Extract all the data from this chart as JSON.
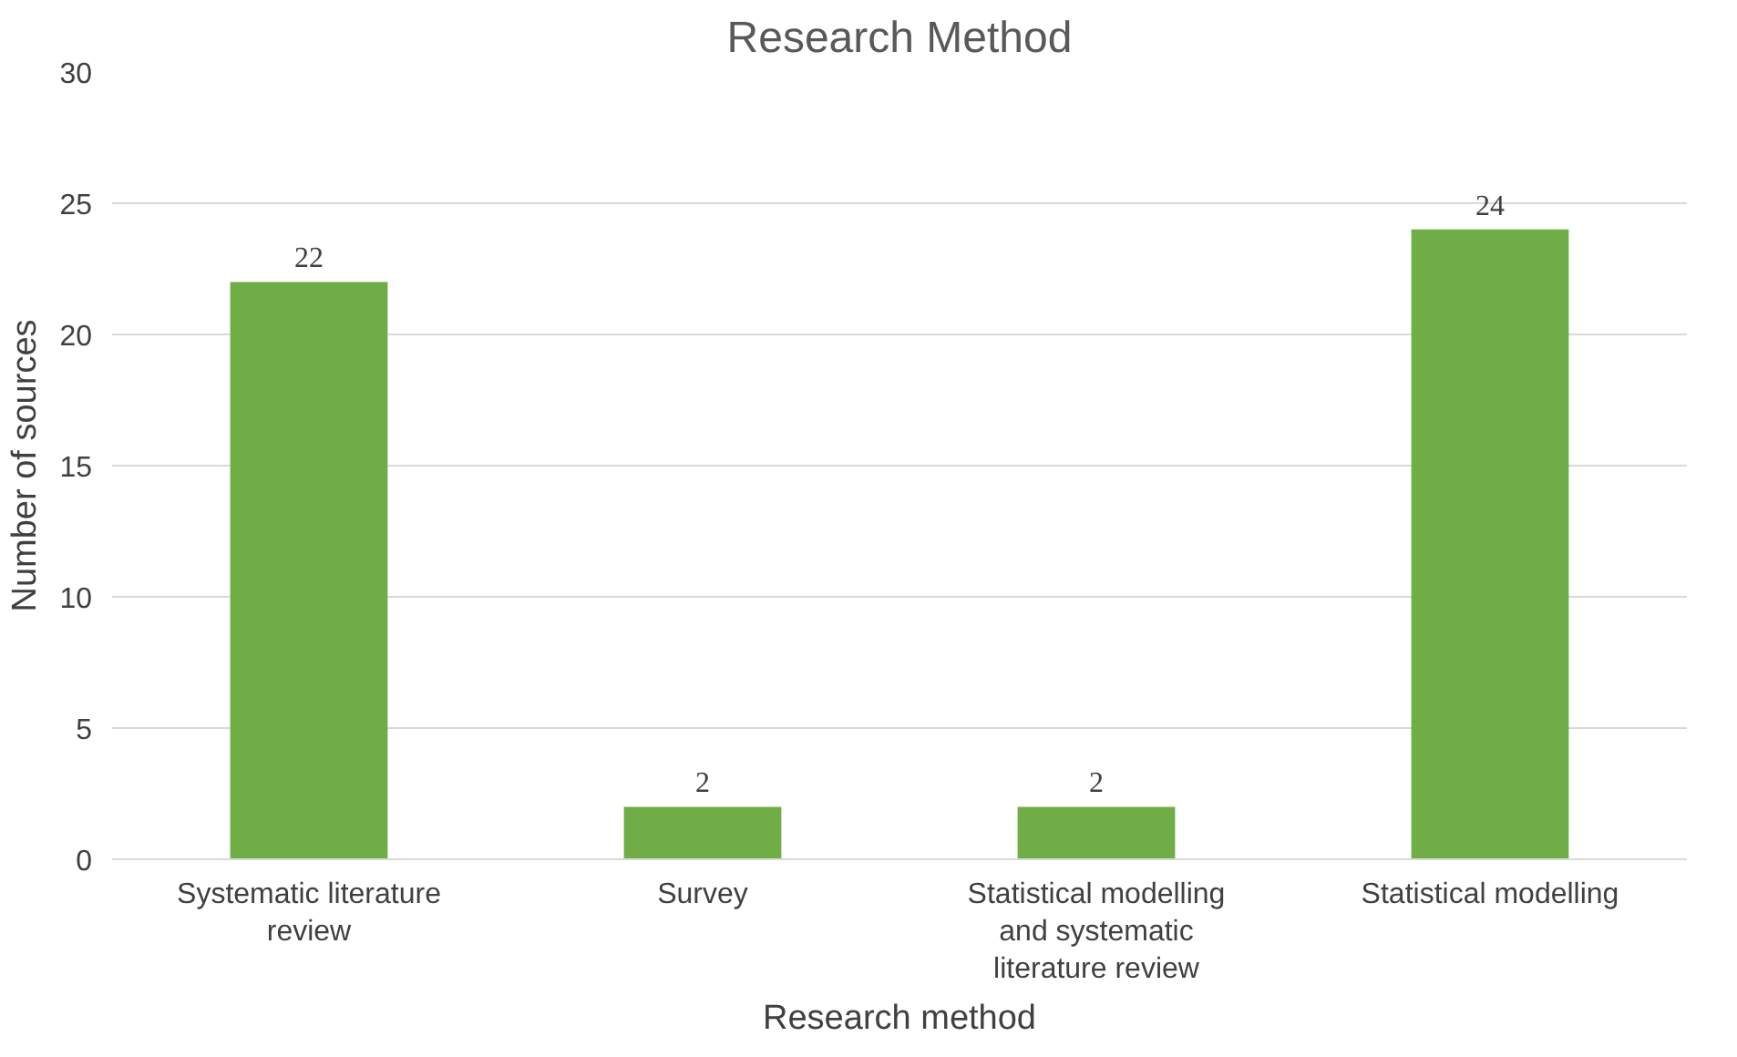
{
  "chart_data": {
    "type": "bar",
    "title": "Research Method",
    "xlabel": "Research method",
    "ylabel": "Number of sources",
    "categories": [
      "Systematic literature review",
      "Survey",
      "Statistical modelling and systematic literature review",
      "Statistical modelling"
    ],
    "values": [
      22,
      2,
      2,
      24
    ],
    "color": "#70ad47",
    "ylim": [
      0,
      30
    ],
    "yticks": [
      0,
      5,
      10,
      15,
      20,
      25,
      30
    ],
    "grid": "y",
    "data_labels": true
  }
}
